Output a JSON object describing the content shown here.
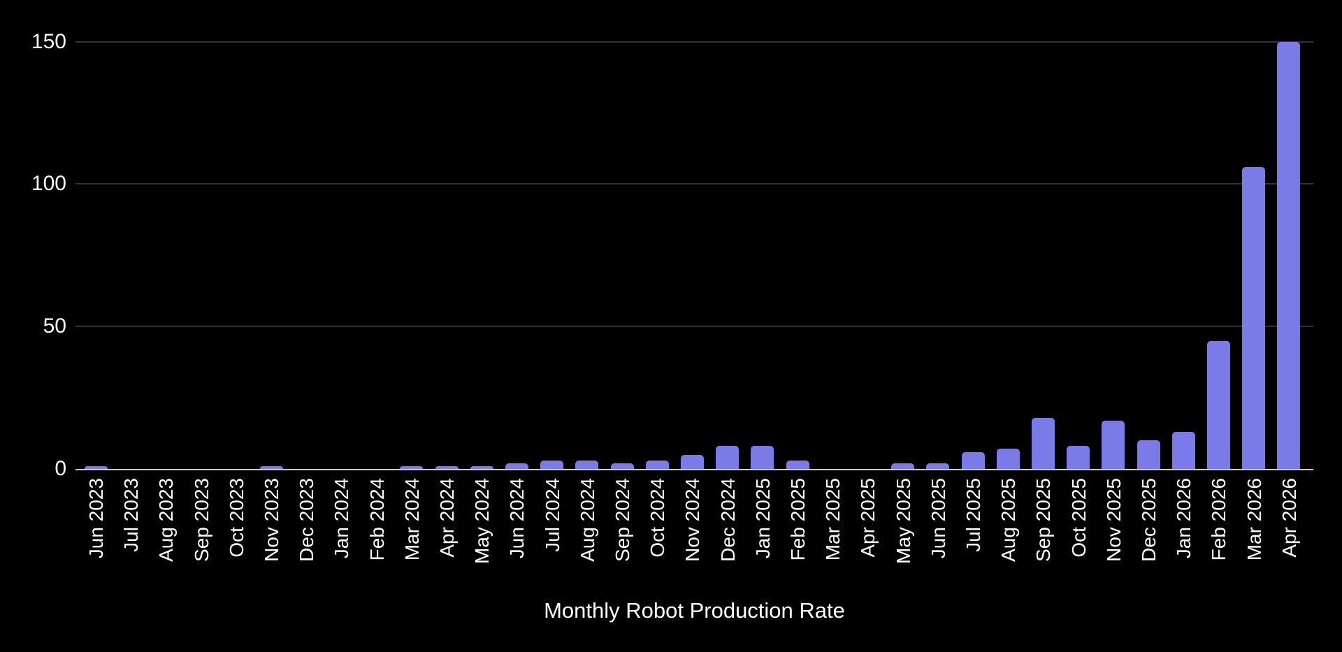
{
  "chart": {
    "title": "Monthly Robot Production Rate",
    "colors": {
      "background": "#000000",
      "bar": "#7a7ae8",
      "gridline": "#333333",
      "axis_baseline": "#c9c9c9",
      "text": "#ffffff"
    }
  },
  "chart_data": {
    "type": "bar",
    "title": "Monthly Robot Production Rate",
    "xlabel": "",
    "ylabel": "",
    "categories": [
      "Jun 2023",
      "Jul 2023",
      "Aug 2023",
      "Sep 2023",
      "Oct 2023",
      "Nov 2023",
      "Dec 2023",
      "Jan 2024",
      "Feb 2024",
      "Mar 2024",
      "Apr 2024",
      "May 2024",
      "Jun 2024",
      "Jul 2024",
      "Aug 2024",
      "Sep 2024",
      "Oct 2024",
      "Nov 2024",
      "Dec 2024",
      "Jan 2025",
      "Feb 2025",
      "Mar 2025",
      "Apr 2025",
      "May 2025",
      "Jun 2025",
      "Jul 2025",
      "Aug 2025",
      "Sep 2025",
      "Oct 2025",
      "Nov 2025",
      "Dec 2025",
      "Jan 2026",
      "Feb 2026",
      "Mar 2026",
      "Apr 2026"
    ],
    "values": [
      1,
      0,
      0,
      0,
      0,
      1,
      0,
      0,
      0,
      1,
      1,
      1,
      2,
      3,
      3,
      2,
      3,
      5,
      8,
      8,
      3,
      0,
      0,
      2,
      2,
      6,
      7,
      18,
      8,
      17,
      10,
      13,
      45,
      106,
      150
    ],
    "y_ticks": [
      0,
      50,
      100,
      150
    ],
    "ylim": [
      0,
      157
    ],
    "grid": "horizontal",
    "legend": "none",
    "bar_color": "#7a7ae8",
    "x_tick_rotation_degrees": 90
  }
}
